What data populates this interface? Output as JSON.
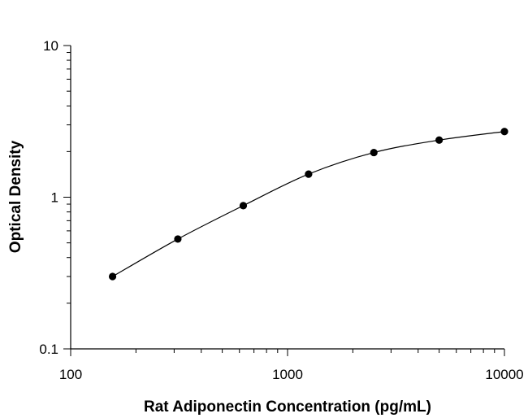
{
  "chart_data": {
    "type": "scatter",
    "title": "",
    "xlabel": "Rat Adiponectin Concentration (pg/mL)",
    "ylabel": "Optical Density",
    "x_scale": "log",
    "y_scale": "log",
    "xlim": [
      100,
      10000
    ],
    "ylim": [
      0.1,
      10
    ],
    "x_ticks": [
      {
        "value": 100,
        "label": "100"
      },
      {
        "value": 1000,
        "label": "1000"
      },
      {
        "value": 10000,
        "label": "10000"
      }
    ],
    "y_ticks": [
      {
        "value": 0.1,
        "label": "0.1"
      },
      {
        "value": 1,
        "label": "1"
      },
      {
        "value": 10,
        "label": "10"
      }
    ],
    "grid": false,
    "legend": "none",
    "series": [
      {
        "x": [
          156,
          312,
          625,
          1250,
          2500,
          5000,
          10000
        ],
        "y": [
          0.3,
          0.53,
          0.88,
          1.42,
          1.97,
          2.38,
          2.71
        ],
        "marker_color": "#000000",
        "fit_line": true
      }
    ]
  }
}
